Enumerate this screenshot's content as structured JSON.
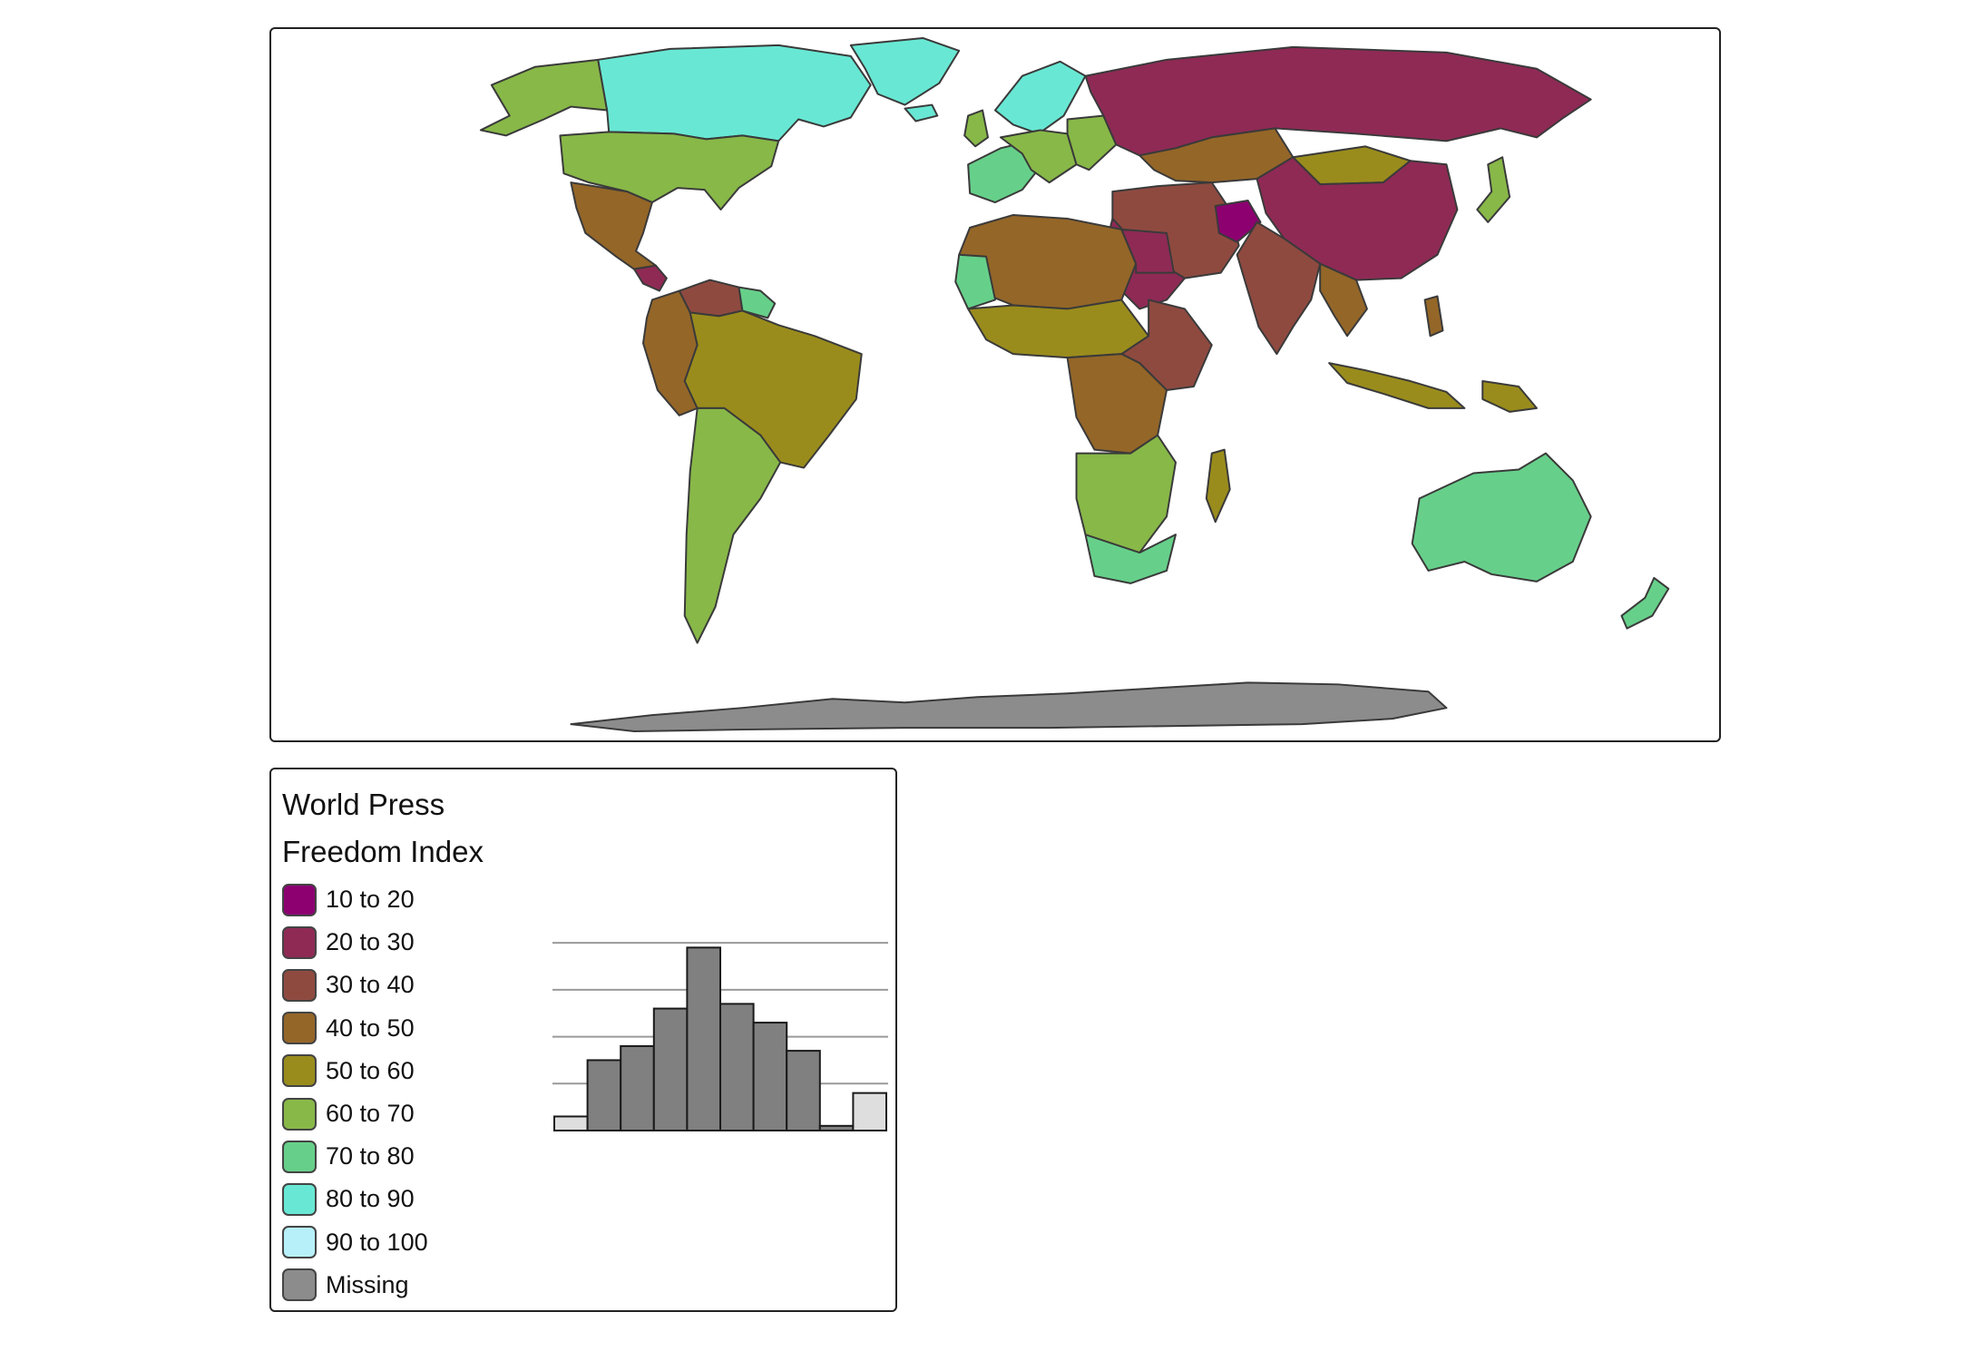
{
  "map": {
    "colors": {
      "c10_20": "#8c0070",
      "c20_30": "#8f2a55",
      "c30_40": "#8f4a40",
      "c40_50": "#946628",
      "c50_60": "#9a8c1c",
      "c60_70": "#88b848",
      "c70_80": "#66d08a",
      "c80_90": "#68e8d4",
      "c90_100": "#b8f0fa",
      "missing": "#8c8c8c",
      "border": "#3a3a3a"
    }
  },
  "legend": {
    "title_line1": "World Press",
    "title_line2": "Freedom Index",
    "items": [
      {
        "label": "10 to 20",
        "color": "#8c0070"
      },
      {
        "label": "20 to 30",
        "color": "#8f2a55"
      },
      {
        "label": "30 to 40",
        "color": "#8f4a40"
      },
      {
        "label": "40 to 50",
        "color": "#946628"
      },
      {
        "label": "50 to 60",
        "color": "#9a8c1c"
      },
      {
        "label": "60 to 70",
        "color": "#88b848"
      },
      {
        "label": "70 to 80",
        "color": "#66d08a"
      },
      {
        "label": "80 to 90",
        "color": "#68e8d4"
      },
      {
        "label": "90 to 100",
        "color": "#b8f0fa"
      },
      {
        "label": "Missing",
        "color": "#8c8c8c"
      }
    ]
  },
  "chart_data": {
    "type": "bar",
    "categories": [
      "10 to 20",
      "20 to 30",
      "30 to 40",
      "40 to 50",
      "50 to 60",
      "60 to 70",
      "70 to 80",
      "80 to 90",
      "90 to 100",
      "Missing"
    ],
    "bins": [
      {
        "range": [
          10,
          20
        ],
        "count": 3
      },
      {
        "range": [
          20,
          30
        ],
        "count": 15
      },
      {
        "range": [
          30,
          40
        ],
        "count": 18
      },
      {
        "range": [
          40,
          50
        ],
        "count": 26
      },
      {
        "range": [
          50,
          60
        ],
        "count": 39
      },
      {
        "range": [
          60,
          70
        ],
        "count": 27
      },
      {
        "range": [
          70,
          80
        ],
        "count": 23
      },
      {
        "range": [
          80,
          90
        ],
        "count": 17
      },
      {
        "range": [
          90,
          100
        ],
        "count": 1
      },
      {
        "range": null,
        "count": 8,
        "missing": true
      }
    ],
    "ylim": [
      0,
      40
    ],
    "gridlines": [
      10,
      20,
      30,
      40
    ],
    "bar_color": "#808080",
    "highlight_color": "#dedede",
    "grid": true,
    "title": "",
    "xlabel": "",
    "ylabel": ""
  }
}
